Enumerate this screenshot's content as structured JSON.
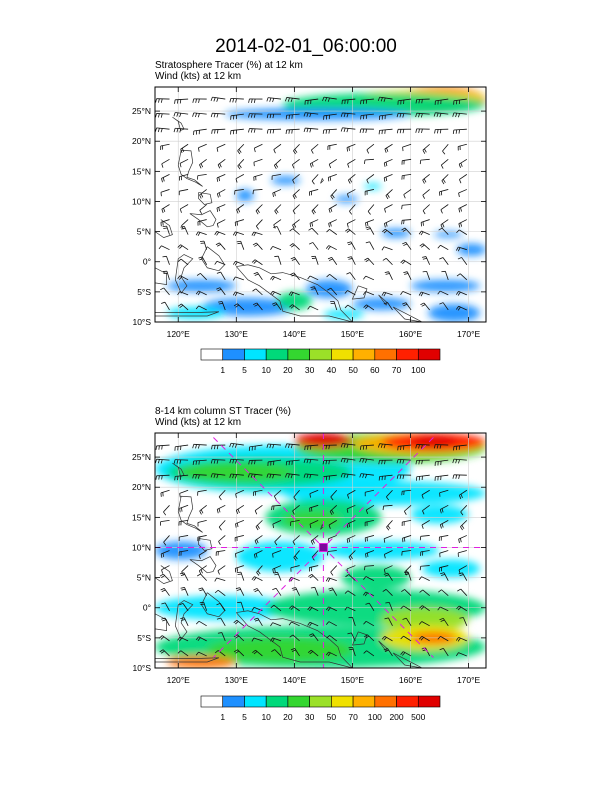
{
  "figure": {
    "title": "2014-02-01_06:00:00"
  },
  "chart_data": [
    {
      "type": "heatmap",
      "title": "Stratosphere Tracer   (%)     at   12 km",
      "subtitle": "Wind    (kts)      at   12 km",
      "xlim": [
        116,
        173
      ],
      "ylim": [
        -10,
        29
      ],
      "x_ticks": [
        {
          "value": 120,
          "label": "120°E"
        },
        {
          "value": 130,
          "label": "130°E"
        },
        {
          "value": 140,
          "label": "140°E"
        },
        {
          "value": 150,
          "label": "150°E"
        },
        {
          "value": 160,
          "label": "160°E"
        },
        {
          "value": 170,
          "label": "170°E"
        }
      ],
      "y_ticks": [
        {
          "value": 25,
          "label": "25°N"
        },
        {
          "value": 20,
          "label": "20°N"
        },
        {
          "value": 15,
          "label": "15°N"
        },
        {
          "value": 10,
          "label": "10°N"
        },
        {
          "value": 5,
          "label": "5°N"
        },
        {
          "value": 0,
          "label": "0°"
        },
        {
          "value": -5,
          "label": "5°S"
        },
        {
          "value": -10,
          "label": "10°S"
        }
      ],
      "colorbar": {
        "labels": [
          "1",
          "5",
          "10",
          "20",
          "30",
          "40",
          "50",
          "60",
          "70",
          "100"
        ],
        "colors": [
          "#ffffff",
          "#1e90ff",
          "#00e5ff",
          "#00d97a",
          "#34d630",
          "#9be028",
          "#f0e000",
          "#ffb000",
          "#ff7000",
          "#ff2000",
          "#e00000"
        ]
      },
      "blobs": [
        {
          "lon": [
            157,
            173
          ],
          "lat": [
            25,
            29
          ],
          "level": 9
        },
        {
          "lon": [
            160,
            170
          ],
          "lat": [
            25.5,
            28.5
          ],
          "level": 10
        },
        {
          "lon": [
            150,
            173
          ],
          "lat": [
            26,
            28.5
          ],
          "level": 6
        },
        {
          "lon": [
            138,
            173
          ],
          "lat": [
            24.2,
            28
          ],
          "level": 3
        },
        {
          "lon": [
            128,
            160
          ],
          "lat": [
            23.5,
            25.5
          ],
          "level": 1
        },
        {
          "lon": [
            136,
            141
          ],
          "lat": [
            12.8,
            14.2
          ],
          "level": 1
        },
        {
          "lon": [
            130,
            133
          ],
          "lat": [
            10,
            12
          ],
          "level": 1
        },
        {
          "lon": [
            147,
            151
          ],
          "lat": [
            9.8,
            11
          ],
          "level": 1
        },
        {
          "lon": [
            152,
            155
          ],
          "lat": [
            12,
            13
          ],
          "level": 2
        },
        {
          "lon": [
            155,
            160
          ],
          "lat": [
            4,
            5.5
          ],
          "level": 1
        },
        {
          "lon": [
            164,
            169
          ],
          "lat": [
            4,
            5
          ],
          "level": 1
        },
        {
          "lon": [
            168,
            173
          ],
          "lat": [
            1,
            3
          ],
          "level": 1
        },
        {
          "lon": [
            118,
            130
          ],
          "lat": [
            -5,
            -3
          ],
          "level": 1
        },
        {
          "lon": [
            124,
            140
          ],
          "lat": [
            -9,
            -6
          ],
          "level": 1
        },
        {
          "lon": [
            137,
            143
          ],
          "lat": [
            -8,
            -5
          ],
          "level": 3
        },
        {
          "lon": [
            118,
            128
          ],
          "lat": [
            -9.5,
            -7.5
          ],
          "level": 2
        },
        {
          "lon": [
            142,
            150
          ],
          "lat": [
            -6,
            -3
          ],
          "level": 1
        },
        {
          "lon": [
            150,
            160
          ],
          "lat": [
            -8,
            -6
          ],
          "level": 1
        },
        {
          "lon": [
            160,
            172
          ],
          "lat": [
            -5,
            -3
          ],
          "level": 1
        },
        {
          "lon": [
            163,
            172
          ],
          "lat": [
            -10,
            -7
          ],
          "level": 1
        },
        {
          "lon": [
            145,
            152
          ],
          "lat": [
            -9.5,
            -8
          ],
          "level": 2
        }
      ]
    },
    {
      "type": "heatmap",
      "title": "8-14 km column ST Tracer    (%)",
      "subtitle": "Wind    (kts)      at   12 km",
      "xlim": [
        116,
        173
      ],
      "ylim": [
        -10,
        29
      ],
      "x_ticks": [
        {
          "value": 120,
          "label": "120°E"
        },
        {
          "value": 130,
          "label": "130°E"
        },
        {
          "value": 140,
          "label": "140°E"
        },
        {
          "value": 150,
          "label": "150°E"
        },
        {
          "value": 160,
          "label": "160°E"
        },
        {
          "value": 170,
          "label": "170°E"
        }
      ],
      "y_ticks": [
        {
          "value": 25,
          "label": "25°N"
        },
        {
          "value": 20,
          "label": "20°N"
        },
        {
          "value": 15,
          "label": "15°N"
        },
        {
          "value": 10,
          "label": "10°N"
        },
        {
          "value": 5,
          "label": "5°N"
        },
        {
          "value": 0,
          "label": "0°"
        },
        {
          "value": -5,
          "label": "5°S"
        },
        {
          "value": -10,
          "label": "10°S"
        }
      ],
      "colorbar": {
        "labels": [
          "1",
          "5",
          "10",
          "20",
          "30",
          "50",
          "70",
          "100",
          "200",
          "500"
        ],
        "colors": [
          "#ffffff",
          "#1e90ff",
          "#00e5ff",
          "#00d97a",
          "#34d630",
          "#9be028",
          "#f0e000",
          "#ffb000",
          "#ff7000",
          "#ff2000",
          "#e00000"
        ]
      },
      "crosshair": {
        "lon": 145,
        "lat": 10
      },
      "blobs": [
        {
          "lon": [
            116,
            160
          ],
          "lat": [
            19,
            27
          ],
          "level": 2
        },
        {
          "lon": [
            118,
            150
          ],
          "lat": [
            20,
            25
          ],
          "level": 3
        },
        {
          "lon": [
            120,
            140
          ],
          "lat": [
            21,
            24
          ],
          "level": 4
        },
        {
          "lon": [
            140,
            173
          ],
          "lat": [
            24,
            29
          ],
          "level": 4
        },
        {
          "lon": [
            150,
            173
          ],
          "lat": [
            25.5,
            29
          ],
          "level": 7
        },
        {
          "lon": [
            155,
            173
          ],
          "lat": [
            26,
            29
          ],
          "level": 9
        },
        {
          "lon": [
            140,
            150
          ],
          "lat": [
            26.5,
            29
          ],
          "level": 10
        },
        {
          "lon": [
            160,
            168
          ],
          "lat": [
            26.5,
            28.5
          ],
          "level": 10
        },
        {
          "lon": [
            138,
            173
          ],
          "lat": [
            17,
            21
          ],
          "level": 2
        },
        {
          "lon": [
            135,
            155
          ],
          "lat": [
            12,
            18
          ],
          "level": 3
        },
        {
          "lon": [
            138,
            148
          ],
          "lat": [
            13,
            16
          ],
          "level": 4
        },
        {
          "lon": [
            160,
            170
          ],
          "lat": [
            14,
            17
          ],
          "level": 2
        },
        {
          "lon": [
            116,
            125
          ],
          "lat": [
            8,
            11
          ],
          "level": 1
        },
        {
          "lon": [
            130,
            145
          ],
          "lat": [
            6,
            11
          ],
          "level": 2
        },
        {
          "lon": [
            145,
            165
          ],
          "lat": [
            8,
            11
          ],
          "level": 2
        },
        {
          "lon": [
            148,
            160
          ],
          "lat": [
            3,
            7
          ],
          "level": 3
        },
        {
          "lon": [
            162,
            172
          ],
          "lat": [
            5,
            8
          ],
          "level": 2
        },
        {
          "lon": [
            116,
            140
          ],
          "lat": [
            -2,
            2
          ],
          "level": 2
        },
        {
          "lon": [
            135,
            173
          ],
          "lat": [
            -3,
            3
          ],
          "level": 3
        },
        {
          "lon": [
            155,
            170
          ],
          "lat": [
            -4,
            0
          ],
          "level": 5
        },
        {
          "lon": [
            116,
            173
          ],
          "lat": [
            -10,
            -3
          ],
          "level": 3
        },
        {
          "lon": [
            125,
            150
          ],
          "lat": [
            -9,
            -5
          ],
          "level": 4
        },
        {
          "lon": [
            155,
            170
          ],
          "lat": [
            -7,
            -3
          ],
          "level": 6
        },
        {
          "lon": [
            160,
            168
          ],
          "lat": [
            -6,
            -4
          ],
          "level": 8
        },
        {
          "lon": [
            118,
            130
          ],
          "lat": [
            -10,
            -8
          ],
          "level": 8
        }
      ]
    }
  ]
}
